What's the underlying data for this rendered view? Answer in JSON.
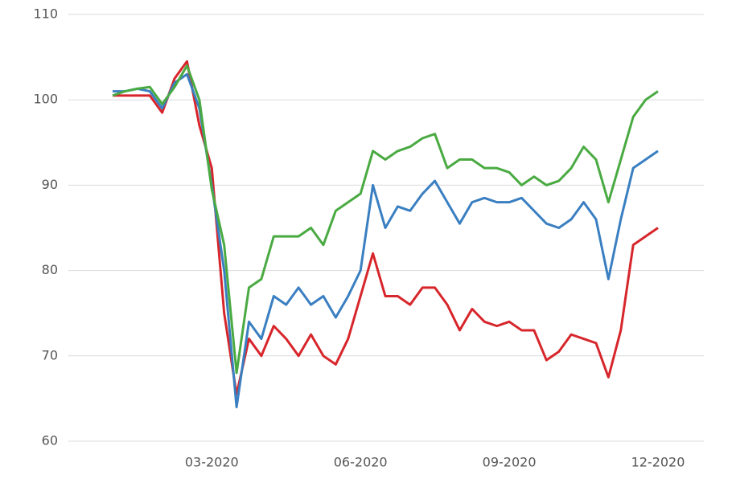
{
  "chart_data": {
    "type": "line",
    "categories": [
      null,
      null,
      null,
      null,
      null,
      null,
      null,
      null,
      "03-2020",
      null,
      null,
      null,
      null,
      null,
      null,
      null,
      null,
      null,
      null,
      null,
      "06-2020",
      null,
      null,
      null,
      null,
      null,
      null,
      null,
      null,
      null,
      null,
      null,
      "09-2020",
      null,
      null,
      null,
      null,
      null,
      null,
      null,
      null,
      null,
      null,
      null,
      "12-2020"
    ],
    "series": [
      {
        "color": "#d7262b",
        "values": [
          100.5,
          100.5,
          100.5,
          100.5,
          98.5,
          102.5,
          104.5,
          97,
          92,
          75,
          65.5,
          72,
          70,
          73.5,
          72,
          70,
          72.5,
          70,
          69,
          72,
          77,
          82,
          77,
          77,
          76,
          78,
          78,
          76,
          73,
          75.5,
          74,
          73.5,
          74,
          73,
          73,
          69.5,
          70.5,
          72.5,
          72,
          71.5,
          67.5,
          73,
          83,
          84,
          85
        ]
      },
      {
        "color": "#3a7fc1",
        "values": [
          101,
          101,
          101.3,
          101,
          99,
          102,
          103,
          99,
          90,
          80,
          64,
          74,
          72,
          77,
          76,
          78,
          76,
          77,
          74.5,
          77,
          80,
          90,
          85,
          87.5,
          87,
          89,
          90.5,
          88,
          85.5,
          88,
          88.5,
          88,
          88,
          88.5,
          87,
          85.5,
          85,
          86,
          88,
          86,
          79,
          86,
          92,
          93,
          94
        ]
      },
      {
        "color": "#4aaa42",
        "values": [
          100.5,
          101,
          101.3,
          101.5,
          99.5,
          101.5,
          104,
          100,
          89.5,
          83,
          68,
          78,
          79,
          84,
          84,
          84,
          85,
          83,
          87,
          88,
          89,
          94,
          93,
          94,
          94.5,
          95.5,
          96,
          92,
          93,
          93,
          92,
          92,
          91.5,
          90,
          91,
          90,
          90.5,
          92,
          94.5,
          93,
          88,
          93,
          98,
          100,
          101
        ]
      }
    ],
    "ylim": [
      60,
      110
    ],
    "yticks": [
      60,
      70,
      80,
      90,
      100,
      110
    ],
    "grid": true
  }
}
